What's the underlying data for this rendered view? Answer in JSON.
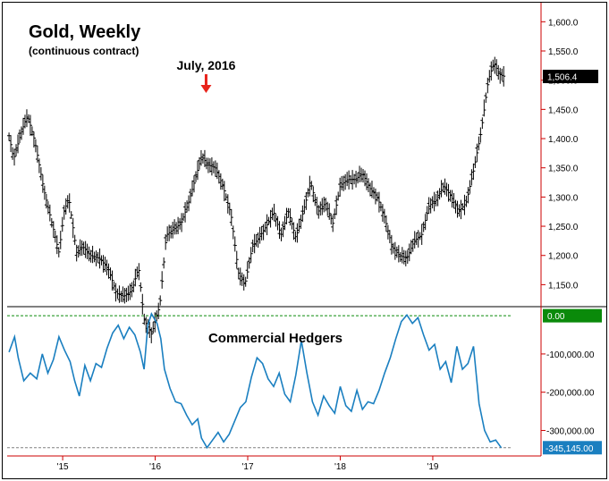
{
  "chart_data": [
    {
      "type": "ohlc",
      "title": "Gold, Weekly",
      "subtitle": "(continuous contract)",
      "annotation": {
        "label": "July, 2016",
        "x": 2016.55,
        "color": "#e8231b"
      },
      "y_ticks": [
        "1,600.0",
        "1,550.0",
        "1,500.0",
        "1,450.0",
        "1,400.0",
        "1,350.0",
        "1,300.0",
        "1,250.0",
        "1,200.0",
        "1,150.0"
      ],
      "ylim": [
        1120,
        1625
      ],
      "last_value_label": "1,506.4",
      "last_value": 1506.4,
      "price_path": [
        [
          2014.42,
          1405
        ],
        [
          2014.47,
          1365
        ],
        [
          2014.55,
          1410
        ],
        [
          2014.62,
          1440
        ],
        [
          2014.7,
          1395
        ],
        [
          2014.8,
          1310
        ],
        [
          2014.9,
          1245
        ],
        [
          2014.96,
          1205
        ],
        [
          2015.02,
          1280
        ],
        [
          2015.07,
          1295
        ],
        [
          2015.15,
          1205
        ],
        [
          2015.22,
          1215
        ],
        [
          2015.3,
          1200
        ],
        [
          2015.4,
          1195
        ],
        [
          2015.5,
          1175
        ],
        [
          2015.58,
          1135
        ],
        [
          2015.66,
          1130
        ],
        [
          2015.75,
          1140
        ],
        [
          2015.82,
          1180
        ],
        [
          2015.88,
          1090
        ],
        [
          2015.96,
          1065
        ],
        [
          2016.05,
          1115
        ],
        [
          2016.12,
          1235
        ],
        [
          2016.2,
          1245
        ],
        [
          2016.28,
          1255
        ],
        [
          2016.36,
          1290
        ],
        [
          2016.44,
          1335
        ],
        [
          2016.5,
          1370
        ],
        [
          2016.57,
          1355
        ],
        [
          2016.65,
          1350
        ],
        [
          2016.73,
          1320
        ],
        [
          2016.82,
          1270
        ],
        [
          2016.9,
          1170
        ],
        [
          2016.97,
          1150
        ],
        [
          2017.05,
          1215
        ],
        [
          2017.12,
          1230
        ],
        [
          2017.2,
          1250
        ],
        [
          2017.28,
          1275
        ],
        [
          2017.36,
          1235
        ],
        [
          2017.44,
          1275
        ],
        [
          2017.52,
          1230
        ],
        [
          2017.6,
          1275
        ],
        [
          2017.68,
          1325
        ],
        [
          2017.76,
          1275
        ],
        [
          2017.84,
          1290
        ],
        [
          2017.92,
          1255
        ],
        [
          2018.0,
          1320
        ],
        [
          2018.08,
          1330
        ],
        [
          2018.16,
          1330
        ],
        [
          2018.24,
          1340
        ],
        [
          2018.32,
          1315
        ],
        [
          2018.4,
          1300
        ],
        [
          2018.48,
          1265
        ],
        [
          2018.56,
          1215
        ],
        [
          2018.64,
          1200
        ],
        [
          2018.72,
          1195
        ],
        [
          2018.8,
          1225
        ],
        [
          2018.88,
          1235
        ],
        [
          2018.96,
          1285
        ],
        [
          2019.04,
          1295
        ],
        [
          2019.12,
          1320
        ],
        [
          2019.2,
          1300
        ],
        [
          2019.28,
          1275
        ],
        [
          2019.36,
          1290
        ],
        [
          2019.44,
          1345
        ],
        [
          2019.52,
          1410
        ],
        [
          2019.6,
          1500
        ],
        [
          2019.66,
          1530
        ],
        [
          2019.72,
          1510
        ],
        [
          2019.78,
          1506
        ]
      ]
    },
    {
      "type": "line",
      "title": "Commercial Hedgers",
      "y_ticks": [
        "-100,000.00",
        "-200,000.00",
        "-300,000.00"
      ],
      "ylim": [
        -355000,
        12000
      ],
      "zero_label": "0.00",
      "zero_color": "#0a8a0a",
      "last_value_label": "-345,145.00",
      "last_value": -345145,
      "series_color": "#1a7fc0",
      "series": [
        [
          2014.42,
          -95000
        ],
        [
          2014.48,
          -55000
        ],
        [
          2014.52,
          -110000
        ],
        [
          2014.58,
          -170000
        ],
        [
          2014.65,
          -150000
        ],
        [
          2014.72,
          -165000
        ],
        [
          2014.78,
          -100000
        ],
        [
          2014.84,
          -150000
        ],
        [
          2014.9,
          -115000
        ],
        [
          2014.96,
          -55000
        ],
        [
          2015.02,
          -90000
        ],
        [
          2015.08,
          -120000
        ],
        [
          2015.13,
          -170000
        ],
        [
          2015.18,
          -210000
        ],
        [
          2015.24,
          -130000
        ],
        [
          2015.3,
          -170000
        ],
        [
          2015.36,
          -125000
        ],
        [
          2015.42,
          -135000
        ],
        [
          2015.48,
          -85000
        ],
        [
          2015.54,
          -45000
        ],
        [
          2015.6,
          -25000
        ],
        [
          2015.66,
          -60000
        ],
        [
          2015.72,
          -30000
        ],
        [
          2015.78,
          -50000
        ],
        [
          2015.84,
          -95000
        ],
        [
          2015.88,
          -140000
        ],
        [
          2015.92,
          -25000
        ],
        [
          2015.96,
          5000
        ],
        [
          2016.02,
          -20000
        ],
        [
          2016.06,
          -60000
        ],
        [
          2016.1,
          -140000
        ],
        [
          2016.16,
          -190000
        ],
        [
          2016.22,
          -225000
        ],
        [
          2016.28,
          -230000
        ],
        [
          2016.34,
          -260000
        ],
        [
          2016.4,
          -285000
        ],
        [
          2016.46,
          -270000
        ],
        [
          2016.5,
          -320000
        ],
        [
          2016.56,
          -345000
        ],
        [
          2016.62,
          -325000
        ],
        [
          2016.68,
          -305000
        ],
        [
          2016.74,
          -330000
        ],
        [
          2016.8,
          -310000
        ],
        [
          2016.86,
          -275000
        ],
        [
          2016.92,
          -240000
        ],
        [
          2016.98,
          -225000
        ],
        [
          2017.04,
          -160000
        ],
        [
          2017.1,
          -110000
        ],
        [
          2017.16,
          -125000
        ],
        [
          2017.22,
          -165000
        ],
        [
          2017.28,
          -185000
        ],
        [
          2017.34,
          -150000
        ],
        [
          2017.4,
          -205000
        ],
        [
          2017.46,
          -225000
        ],
        [
          2017.52,
          -155000
        ],
        [
          2017.58,
          -65000
        ],
        [
          2017.64,
          -150000
        ],
        [
          2017.7,
          -225000
        ],
        [
          2017.76,
          -260000
        ],
        [
          2017.82,
          -210000
        ],
        [
          2017.88,
          -235000
        ],
        [
          2017.94,
          -255000
        ],
        [
          2018.0,
          -185000
        ],
        [
          2018.06,
          -235000
        ],
        [
          2018.12,
          -250000
        ],
        [
          2018.18,
          -195000
        ],
        [
          2018.24,
          -245000
        ],
        [
          2018.3,
          -225000
        ],
        [
          2018.36,
          -230000
        ],
        [
          2018.42,
          -195000
        ],
        [
          2018.48,
          -150000
        ],
        [
          2018.54,
          -110000
        ],
        [
          2018.6,
          -60000
        ],
        [
          2018.66,
          -15000
        ],
        [
          2018.72,
          2000
        ],
        [
          2018.78,
          -20000
        ],
        [
          2018.84,
          -5000
        ],
        [
          2018.9,
          -50000
        ],
        [
          2018.96,
          -90000
        ],
        [
          2019.02,
          -75000
        ],
        [
          2019.08,
          -140000
        ],
        [
          2019.14,
          -120000
        ],
        [
          2019.2,
          -175000
        ],
        [
          2019.26,
          -80000
        ],
        [
          2019.32,
          -140000
        ],
        [
          2019.38,
          -125000
        ],
        [
          2019.44,
          -80000
        ],
        [
          2019.5,
          -230000
        ],
        [
          2019.56,
          -300000
        ],
        [
          2019.62,
          -330000
        ],
        [
          2019.68,
          -325000
        ],
        [
          2019.74,
          -345145
        ]
      ]
    }
  ],
  "x_axis": {
    "xlim": [
      2014.4,
      2019.88
    ],
    "ticks": [
      {
        "label": "'15",
        "x": 2015.0
      },
      {
        "label": "'16",
        "x": 2016.0
      },
      {
        "label": "'17",
        "x": 2017.0
      },
      {
        "label": "'18",
        "x": 2018.0
      },
      {
        "label": "'19",
        "x": 2019.0
      }
    ]
  }
}
